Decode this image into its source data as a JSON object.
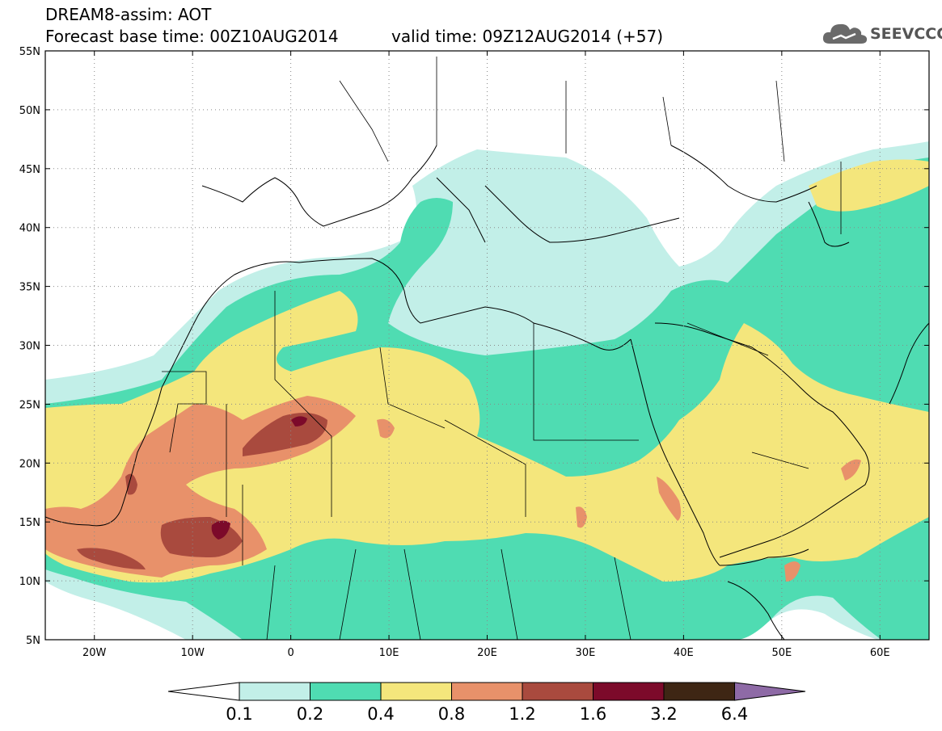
{
  "header": {
    "title": "DREAM8-assim: AOT",
    "base_time": "Forecast base time: 00Z10AUG2014",
    "valid_time": "valid time: 09Z12AUG2014 (+57)"
  },
  "logo": {
    "icon": "cloud-icon",
    "text": "SEEVCCC"
  },
  "map": {
    "lon_range": [
      -25,
      65
    ],
    "lat_range": [
      5,
      55
    ],
    "lat_ticks": [
      "55N",
      "50N",
      "45N",
      "40N",
      "35N",
      "30N",
      "25N",
      "20N",
      "15N",
      "10N",
      "5N"
    ],
    "lon_ticks": [
      "20W",
      "10W",
      "0",
      "10E",
      "20E",
      "30E",
      "40E",
      "50E",
      "60E"
    ],
    "gridlines": "dotted"
  },
  "colorbar": {
    "labels": [
      "0.1",
      "0.2",
      "0.4",
      "0.8",
      "1.2",
      "1.6",
      "3.2",
      "6.4"
    ],
    "colors": [
      "#ffffff",
      "#c2efe8",
      "#4fdcb2",
      "#f4e67c",
      "#e8916a",
      "#a94a3e",
      "#7c0a2a",
      "#3e2614",
      "#8e6aa6"
    ]
  }
}
